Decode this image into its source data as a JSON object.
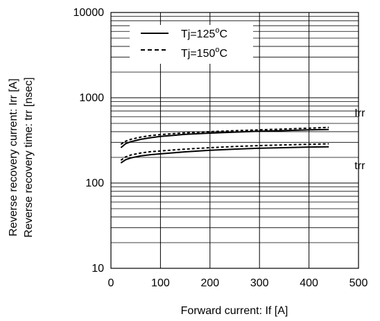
{
  "chart_data": {
    "type": "line",
    "xlabel": "Forward current: If [A]",
    "ylabel_lines": [
      "Reverse recovery current: Irr [A]",
      "Reverse recovery time: trr [nsec]"
    ],
    "xlim": [
      0,
      500
    ],
    "ylim": [
      10,
      10000
    ],
    "y_scale": "log",
    "grid": true,
    "x_ticks": [
      0,
      100,
      200,
      300,
      400,
      500
    ],
    "y_ticks": [
      10,
      100,
      1000,
      10000
    ],
    "x_tick_labels": [
      "0",
      "100",
      "200",
      "300",
      "400",
      "500"
    ],
    "y_tick_labels": [
      "10",
      "100",
      "1000",
      "10000"
    ],
    "legend": {
      "placement": "top-left",
      "entries": [
        {
          "label": "Tj=125°C",
          "label_main": "Tj=125",
          "label_sup": "o",
          "label_unit": "C",
          "style": "solid"
        },
        {
          "label": "Tj=150°C",
          "label_main": "Tj=150",
          "label_sup": "o",
          "label_unit": "C",
          "style": "dashed"
        }
      ]
    },
    "series": [
      {
        "group": "Irr",
        "style": "solid",
        "color": "#000000",
        "x": [
          20,
          30,
          40,
          60,
          80,
          100,
          150,
          200,
          250,
          300,
          350,
          400,
          440
        ],
        "y": [
          260,
          290,
          305,
          325,
          340,
          352,
          372,
          385,
          395,
          405,
          412,
          420,
          425
        ]
      },
      {
        "group": "Irr",
        "style": "dashed",
        "color": "#000000",
        "x": [
          20,
          30,
          40,
          60,
          80,
          100,
          150,
          200,
          250,
          300,
          350,
          400,
          440
        ],
        "y": [
          285,
          310,
          325,
          345,
          360,
          370,
          388,
          400,
          410,
          420,
          430,
          440,
          450
        ]
      },
      {
        "group": "trr",
        "style": "solid",
        "color": "#000000",
        "x": [
          20,
          30,
          40,
          60,
          80,
          100,
          150,
          200,
          250,
          300,
          350,
          400,
          440
        ],
        "y": [
          172,
          188,
          197,
          208,
          215,
          220,
          232,
          242,
          250,
          256,
          260,
          264,
          266
        ]
      },
      {
        "group": "trr",
        "style": "dashed",
        "color": "#000000",
        "x": [
          20,
          30,
          40,
          60,
          80,
          100,
          150,
          200,
          250,
          300,
          350,
          400,
          440
        ],
        "y": [
          185,
          203,
          213,
          225,
          233,
          238,
          250,
          260,
          268,
          275,
          280,
          285,
          288
        ]
      }
    ],
    "annotations": [
      {
        "text": "Irr",
        "x": 450,
        "y": 660
      },
      {
        "text": "trr",
        "x": 450,
        "y": 160
      }
    ]
  }
}
